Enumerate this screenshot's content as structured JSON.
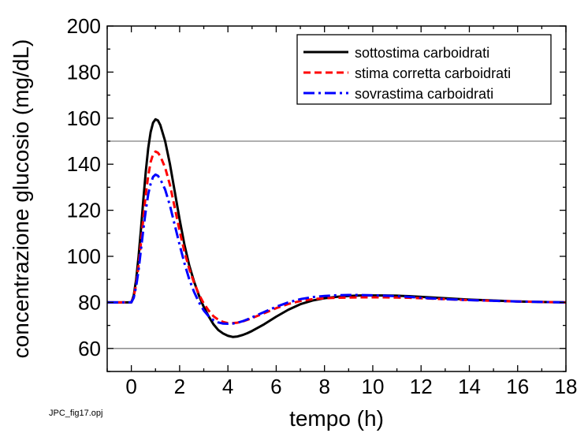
{
  "chart_data": {
    "type": "line",
    "title": "",
    "xlabel": "tempo (h)",
    "ylabel": "concentrazione glucosio (mg/dL)",
    "xlim": [
      -1,
      18
    ],
    "ylim": [
      50,
      200
    ],
    "x_ticks": [
      0,
      2,
      4,
      6,
      8,
      10,
      12,
      14,
      16,
      18
    ],
    "y_ticks": [
      60,
      80,
      100,
      120,
      140,
      160,
      180,
      200
    ],
    "grid": false,
    "legend_position": "top-right",
    "reference_lines": [
      60,
      150
    ],
    "reference_line_color": "#808080",
    "series": [
      {
        "name": "sottostima carboidrati",
        "color": "#000000",
        "dash": "solid",
        "x": [
          -1,
          -0.1,
          0,
          0.1,
          0.2,
          0.3,
          0.4,
          0.5,
          0.6,
          0.7,
          0.8,
          0.9,
          1.0,
          1.1,
          1.2,
          1.4,
          1.6,
          1.8,
          2.0,
          2.2,
          2.4,
          2.6,
          2.8,
          3.0,
          3.2,
          3.4,
          3.6,
          3.8,
          4.0,
          4.2,
          4.4,
          4.6,
          4.8,
          5.0,
          5.5,
          6.0,
          6.5,
          7.0,
          7.5,
          8.0,
          8.5,
          9.0,
          9.5,
          10.0,
          10.5,
          11.0,
          11.5,
          12.0,
          13.0,
          14.0,
          15.0,
          16.0,
          17.0,
          18.0
        ],
        "y": [
          80,
          80,
          80,
          83,
          90,
          100,
          112,
          125,
          137,
          147,
          154,
          158,
          159.5,
          159,
          157,
          150,
          140,
          128,
          116,
          105,
          96,
          89,
          83,
          78,
          74,
          70.5,
          68,
          66.5,
          65.5,
          65,
          65.2,
          65.8,
          66.6,
          67.6,
          70.5,
          73.8,
          76.8,
          79.2,
          80.8,
          81.8,
          82.4,
          82.8,
          83,
          83,
          83,
          82.9,
          82.7,
          82.4,
          81.8,
          81.2,
          80.8,
          80.4,
          80.2,
          80
        ]
      },
      {
        "name": "stima corretta carboidrati",
        "color": "#ff0000",
        "dash": "dashed",
        "x": [
          -1,
          -0.1,
          0,
          0.1,
          0.2,
          0.3,
          0.4,
          0.5,
          0.6,
          0.7,
          0.8,
          0.9,
          1.0,
          1.1,
          1.2,
          1.4,
          1.6,
          1.8,
          2.0,
          2.2,
          2.4,
          2.6,
          2.8,
          3.0,
          3.2,
          3.4,
          3.6,
          3.8,
          4.0,
          4.2,
          4.4,
          4.6,
          4.8,
          5.0,
          5.5,
          6.0,
          6.5,
          7.0,
          7.5,
          8.0,
          8.5,
          9.0,
          9.5,
          10.0,
          10.5,
          11.0,
          11.5,
          12.0,
          13.0,
          14.0,
          15.0,
          16.0,
          17.0,
          18.0
        ],
        "y": [
          80,
          80,
          80,
          82.5,
          88,
          96,
          106,
          117,
          127,
          135,
          141,
          144.3,
          145.5,
          145,
          143.5,
          138.5,
          131,
          121,
          111,
          102,
          94.5,
          88.5,
          83.5,
          79.5,
          76.5,
          74,
          72.5,
          71.5,
          71,
          71,
          71.2,
          71.7,
          72.4,
          73.2,
          75.3,
          77.5,
          79.3,
          80.6,
          81.4,
          81.8,
          82,
          82.1,
          82.2,
          82.2,
          82.2,
          82.1,
          82,
          81.8,
          81.4,
          81,
          80.7,
          80.4,
          80.2,
          80
        ]
      },
      {
        "name": "sovrastima carboidrati",
        "color": "#0000ff",
        "dash": "dashdot",
        "x": [
          -1,
          -0.1,
          0,
          0.1,
          0.2,
          0.3,
          0.4,
          0.5,
          0.6,
          0.7,
          0.8,
          0.9,
          1.0,
          1.1,
          1.2,
          1.4,
          1.6,
          1.8,
          2.0,
          2.2,
          2.4,
          2.6,
          2.8,
          3.0,
          3.2,
          3.4,
          3.6,
          3.8,
          4.0,
          4.2,
          4.4,
          4.6,
          4.8,
          5.0,
          5.5,
          6.0,
          6.5,
          7.0,
          7.5,
          8.0,
          8.5,
          9.0,
          9.5,
          10.0,
          10.5,
          11.0,
          11.5,
          12.0,
          13.0,
          14.0,
          15.0,
          16.0,
          17.0,
          18.0
        ],
        "y": [
          80,
          80,
          80,
          82,
          87,
          94,
          103,
          112,
          120,
          127,
          131.5,
          134.5,
          135.5,
          135,
          133.5,
          129,
          122,
          113.5,
          105,
          97,
          90,
          84.5,
          80,
          76.5,
          74,
          72.3,
          71.3,
          70.8,
          70.7,
          70.8,
          71.2,
          71.8,
          72.6,
          73.5,
          75.8,
          78.1,
          80,
          81.4,
          82.3,
          82.8,
          83.1,
          83.2,
          83.2,
          83.1,
          82.9,
          82.7,
          82.4,
          82,
          81.4,
          81,
          80.7,
          80.4,
          80.2,
          80
        ]
      }
    ]
  },
  "footer": {
    "file_label": "JPC_fig17.opj"
  }
}
